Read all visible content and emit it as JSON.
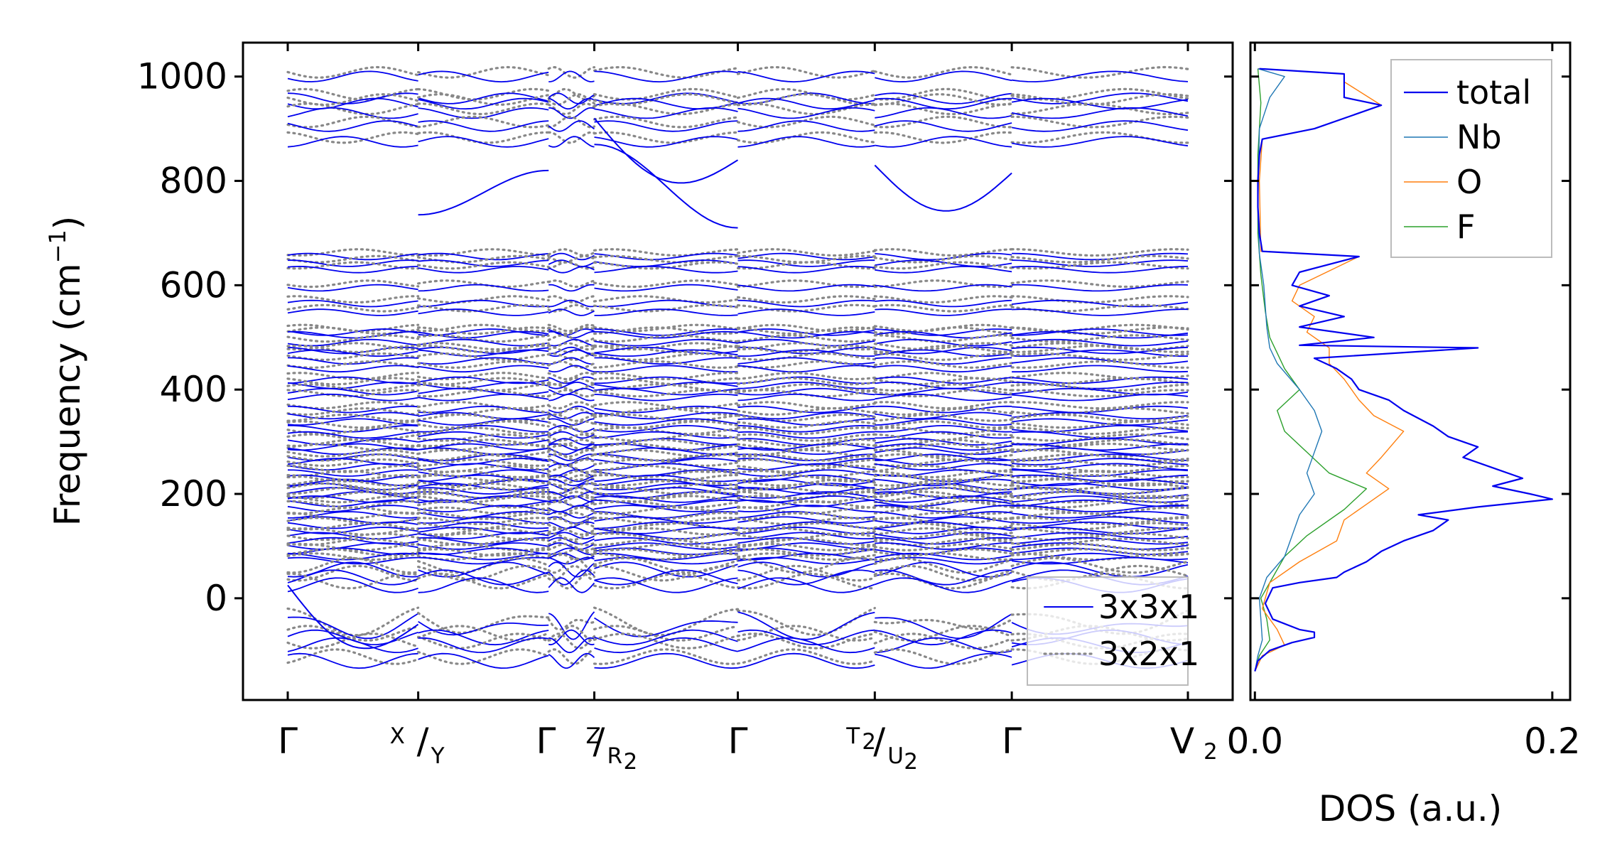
{
  "chart_data": [
    {
      "type": "line",
      "title": "",
      "ylabel": {
        "main": "Frequency (cm",
        "sup": "−1",
        "close": ")"
      },
      "xlabel": "",
      "ylim": [
        -195,
        1065
      ],
      "yticks": [
        0,
        200,
        400,
        600,
        800,
        1000
      ],
      "xticks": [
        {
          "label": "Γ",
          "x": 0.0
        },
        {
          "top": "X",
          "slash": "/",
          "bottom": "Y",
          "x": 1.0
        },
        {
          "main": "Γ",
          "top": "Z",
          "slash": "/",
          "bottom": "R",
          "bottom_sub": "2",
          "x": 2.35
        },
        {
          "label": "Γ",
          "x": 3.45
        },
        {
          "top": "T",
          "top_sub": "2",
          "slash": "/",
          "bottom": "U",
          "bottom_sub": "2",
          "x": 4.5
        },
        {
          "label": "Γ",
          "x": 5.55
        },
        {
          "main": "V",
          "sub": "2",
          "x": 6.9
        }
      ],
      "segment_x": [
        [
          0.0,
          1.0
        ],
        [
          1.0,
          2.0
        ],
        [
          2.0,
          2.35
        ],
        [
          2.35,
          3.45
        ],
        [
          3.45,
          4.5
        ],
        [
          4.5,
          5.55
        ],
        [
          5.55,
          6.9
        ]
      ],
      "legend": {
        "placement": "lower-right",
        "entries": [
          "3x3x1",
          "3x2x1"
        ]
      },
      "series": [
        {
          "name": "3x3x1",
          "color": "#0000ee",
          "style": "solid",
          "bands_top": [
            1000,
            958,
            948,
            930,
            905,
            875
          ],
          "bands_mid": [
            655,
            642,
            630,
            595,
            565,
            548,
            510,
            505,
            490,
            475,
            470,
            455,
            440,
            418,
            408,
            396,
            385,
            362,
            350,
            338,
            325,
            313,
            300,
            290,
            282,
            270,
            262,
            252,
            240,
            230,
            222,
            214,
            206,
            198,
            190,
            182,
            172,
            160,
            150,
            140,
            130,
            120,
            110,
            100,
            90,
            80,
            72,
            55,
            40,
            25
          ],
          "bands_low": [
            -40,
            -75,
            -90,
            -120
          ],
          "highlights": [
            {
              "segment": 1,
              "y0": 735,
              "y1": 820
            },
            {
              "segment": 3,
              "y0": 920,
              "y1": 840,
              "dip": true
            },
            {
              "segment": 3,
              "y0": 870,
              "y1": 710
            },
            {
              "segment": 5,
              "y0": 830,
              "y1": 815,
              "dip": true
            },
            {
              "segment": 0,
              "y0": 25,
              "y1": -50,
              "dip": true
            }
          ]
        },
        {
          "name": "3x2x1",
          "color": "#888888",
          "style": "dotted",
          "offset": 8
        }
      ]
    },
    {
      "type": "line",
      "title": "",
      "xlabel": "DOS (a.u.)",
      "ylabel": "",
      "xlim": [
        -0.003,
        0.212
      ],
      "ylim": [
        -195,
        1065
      ],
      "xticks": [
        "0.0",
        "0.2"
      ],
      "xtick_values": [
        0.0,
        0.2
      ],
      "legend": {
        "placement": "top-right",
        "entries": [
          "total",
          "Nb",
          "O",
          "F"
        ]
      },
      "series": [
        {
          "name": "total",
          "color": "#0000ee",
          "points": [
            [
              0.0,
              -140
            ],
            [
              0.002,
              -120
            ],
            [
              0.01,
              -100
            ],
            [
              0.025,
              -85
            ],
            [
              0.04,
              -75
            ],
            [
              0.04,
              -65
            ],
            [
              0.03,
              -60
            ],
            [
              0.012,
              -40
            ],
            [
              0.007,
              -10
            ],
            [
              0.012,
              20
            ],
            [
              0.03,
              30
            ],
            [
              0.055,
              40
            ],
            [
              0.06,
              50
            ],
            [
              0.075,
              70
            ],
            [
              0.085,
              90
            ],
            [
              0.1,
              110
            ],
            [
              0.12,
              130
            ],
            [
              0.13,
              150
            ],
            [
              0.11,
              160
            ],
            [
              0.15,
              175
            ],
            [
              0.2,
              190
            ],
            [
              0.185,
              200
            ],
            [
              0.16,
              215
            ],
            [
              0.18,
              230
            ],
            [
              0.16,
              250
            ],
            [
              0.14,
              270
            ],
            [
              0.15,
              290
            ],
            [
              0.13,
              310
            ],
            [
              0.12,
              330
            ],
            [
              0.11,
              345
            ],
            [
              0.1,
              360
            ],
            [
              0.09,
              380
            ],
            [
              0.07,
              400
            ],
            [
              0.065,
              420
            ],
            [
              0.055,
              440
            ],
            [
              0.04,
              460
            ],
            [
              0.15,
              480
            ],
            [
              0.03,
              485
            ],
            [
              0.08,
              500
            ],
            [
              0.03,
              520
            ],
            [
              0.06,
              540
            ],
            [
              0.03,
              560
            ],
            [
              0.05,
              580
            ],
            [
              0.025,
              600
            ],
            [
              0.03,
              625
            ],
            [
              0.07,
              655
            ],
            [
              0.005,
              665
            ],
            [
              0.003,
              700
            ],
            [
              0.002,
              750
            ],
            [
              0.002,
              800
            ],
            [
              0.003,
              850
            ],
            [
              0.005,
              880
            ],
            [
              0.04,
              900
            ],
            [
              0.085,
              945
            ],
            [
              0.06,
              960
            ],
            [
              0.06,
              990
            ],
            [
              0.06,
              1005
            ],
            [
              0.003,
              1015
            ]
          ]
        },
        {
          "name": "Nb",
          "color": "#1f77b4",
          "points": [
            [
              0.0,
              -140
            ],
            [
              0.002,
              -110
            ],
            [
              0.005,
              -80
            ],
            [
              0.004,
              -40
            ],
            [
              0.003,
              0
            ],
            [
              0.008,
              40
            ],
            [
              0.02,
              80
            ],
            [
              0.025,
              120
            ],
            [
              0.03,
              160
            ],
            [
              0.04,
              200
            ],
            [
              0.035,
              240
            ],
            [
              0.04,
              280
            ],
            [
              0.045,
              320
            ],
            [
              0.04,
              360
            ],
            [
              0.03,
              400
            ],
            [
              0.015,
              450
            ],
            [
              0.01,
              480
            ],
            [
              0.008,
              520
            ],
            [
              0.006,
              600
            ],
            [
              0.003,
              660
            ],
            [
              0.002,
              750
            ],
            [
              0.003,
              900
            ],
            [
              0.01,
              960
            ],
            [
              0.02,
              1000
            ],
            [
              0.002,
              1015
            ]
          ]
        },
        {
          "name": "O",
          "color": "#ff7f0e",
          "points": [
            [
              0.0,
              -140
            ],
            [
              0.005,
              -110
            ],
            [
              0.02,
              -90
            ],
            [
              0.015,
              -60
            ],
            [
              0.005,
              -20
            ],
            [
              0.01,
              30
            ],
            [
              0.03,
              70
            ],
            [
              0.055,
              110
            ],
            [
              0.06,
              150
            ],
            [
              0.075,
              180
            ],
            [
              0.09,
              210
            ],
            [
              0.075,
              240
            ],
            [
              0.085,
              270
            ],
            [
              0.1,
              320
            ],
            [
              0.08,
              350
            ],
            [
              0.07,
              380
            ],
            [
              0.06,
              420
            ],
            [
              0.05,
              450
            ],
            [
              0.05,
              480
            ],
            [
              0.035,
              510
            ],
            [
              0.04,
              540
            ],
            [
              0.025,
              570
            ],
            [
              0.03,
              600
            ],
            [
              0.07,
              655
            ],
            [
              0.004,
              665
            ],
            [
              0.003,
              800
            ],
            [
              0.005,
              880
            ],
            [
              0.04,
              900
            ],
            [
              0.085,
              945
            ],
            [
              0.06,
              990
            ],
            [
              0.06,
              1005
            ],
            [
              0.002,
              1015
            ]
          ]
        },
        {
          "name": "F",
          "color": "#2ca02c",
          "points": [
            [
              0.0,
              -140
            ],
            [
              0.003,
              -110
            ],
            [
              0.01,
              -80
            ],
            [
              0.008,
              -40
            ],
            [
              0.004,
              0
            ],
            [
              0.012,
              40
            ],
            [
              0.02,
              80
            ],
            [
              0.035,
              120
            ],
            [
              0.06,
              170
            ],
            [
              0.075,
              210
            ],
            [
              0.05,
              240
            ],
            [
              0.035,
              280
            ],
            [
              0.02,
              320
            ],
            [
              0.015,
              360
            ],
            [
              0.03,
              400
            ],
            [
              0.02,
              440
            ],
            [
              0.015,
              470
            ],
            [
              0.01,
              500
            ],
            [
              0.007,
              550
            ],
            [
              0.004,
              620
            ],
            [
              0.002,
              700
            ],
            [
              0.002,
              850
            ],
            [
              0.004,
              950
            ],
            [
              0.002,
              1015
            ]
          ]
        }
      ]
    }
  ]
}
